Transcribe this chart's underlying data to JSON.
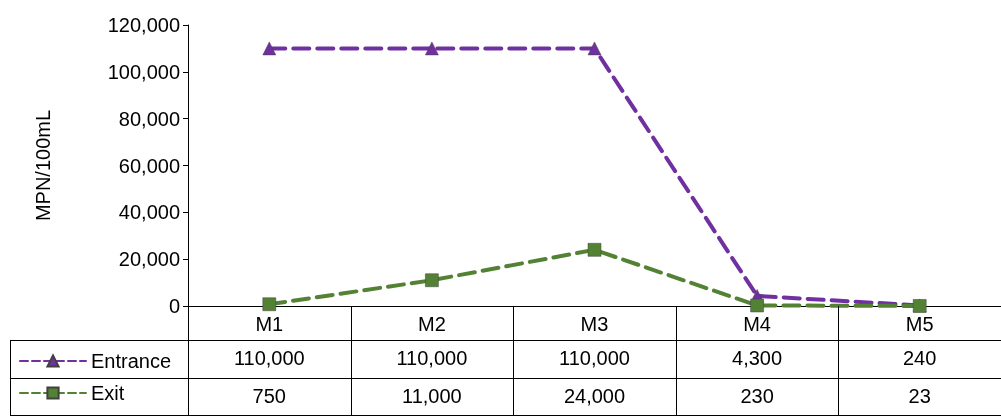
{
  "chart_data": {
    "type": "line",
    "ylabel": "MPN/100mL",
    "categories": [
      "M1",
      "M2",
      "M3",
      "M4",
      "M5"
    ],
    "series": [
      {
        "name": "Entrance",
        "color": "#7030a0",
        "marker": "triangle",
        "values": [
          110000,
          110000,
          110000,
          4300,
          240
        ],
        "value_labels": [
          "110,000",
          "110,000",
          "110,000",
          "4,300",
          "240"
        ]
      },
      {
        "name": "Exit",
        "color": "#548235",
        "marker": "square",
        "values": [
          750,
          11000,
          24000,
          230,
          23
        ],
        "value_labels": [
          "750",
          "11,000",
          "24,000",
          "230",
          "23"
        ]
      }
    ],
    "ylim": [
      0,
      120000
    ],
    "yticks": [
      0,
      {
        "value": 20000,
        "label": "20,000"
      },
      {
        "value": 40000,
        "label": "40,000"
      },
      {
        "value": 60000,
        "label": "60,000"
      },
      {
        "value": 80000,
        "label": "80,000"
      },
      {
        "value": 100000,
        "label": "100,000"
      },
      {
        "value": 120000,
        "label": "120,000"
      }
    ],
    "grid": false,
    "legend": "bottom left",
    "line_style": "dashed"
  }
}
